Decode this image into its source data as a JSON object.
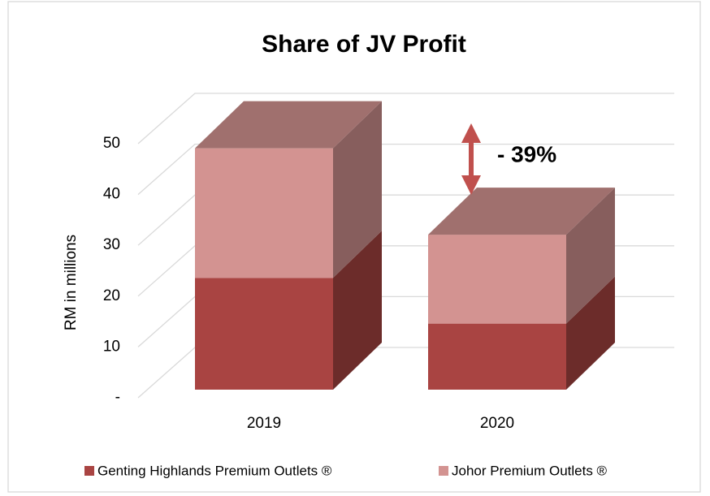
{
  "chart_data": {
    "type": "bar3d_stacked",
    "title": "Share of JV Profit",
    "y_label": "RM in millions",
    "categories": [
      "2019",
      "2020"
    ],
    "series": [
      {
        "name": "Genting Highlands Premium Outlets ®",
        "color": "#a94442",
        "values": [
          22,
          13
        ]
      },
      {
        "name": "Johor Premium Outlets ®",
        "color": "#d39391",
        "values": [
          25.5,
          17.5
        ]
      }
    ],
    "ylim": [
      0,
      50
    ],
    "yticks": [
      {
        "value": 0,
        "label": "-"
      },
      10,
      20,
      30,
      40,
      50
    ],
    "grid": true,
    "legend": "bottom",
    "annotation": "- 39%"
  }
}
